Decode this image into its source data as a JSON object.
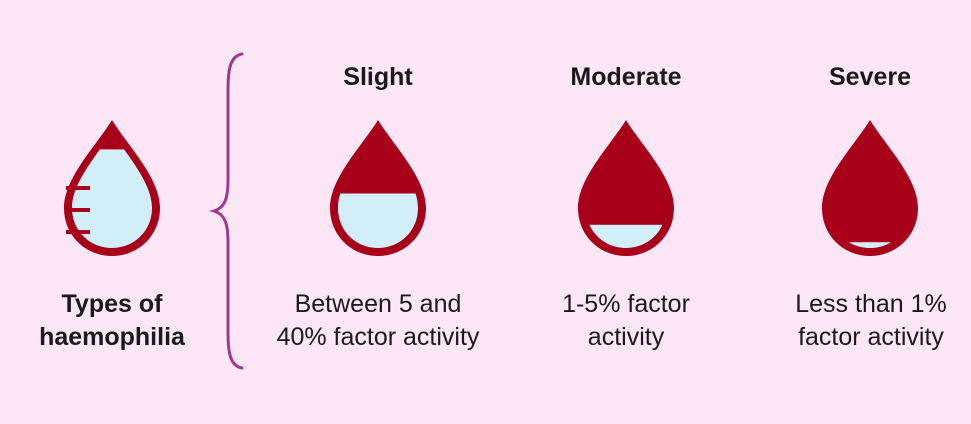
{
  "colors": {
    "background": "#fde6f5",
    "blood": "#a8001a",
    "plasma": "#d2eef8",
    "brace": "#9b3a8f",
    "text": "#1a1a1a"
  },
  "left": {
    "label_line1": "Types of",
    "label_line2": "haemophilia",
    "drop_fill_level": 0.85
  },
  "levels": [
    {
      "heading": "Slight",
      "line1": "Between 5 and",
      "line2": "40% factor activity",
      "light_fraction": 0.47
    },
    {
      "heading": "Moderate",
      "line1": "1-5% factor",
      "line2": "activity",
      "light_fraction": 0.2
    },
    {
      "heading": "Severe",
      "line1": "Less than 1%",
      "line2": "factor activity",
      "light_fraction": 0.05
    }
  ]
}
